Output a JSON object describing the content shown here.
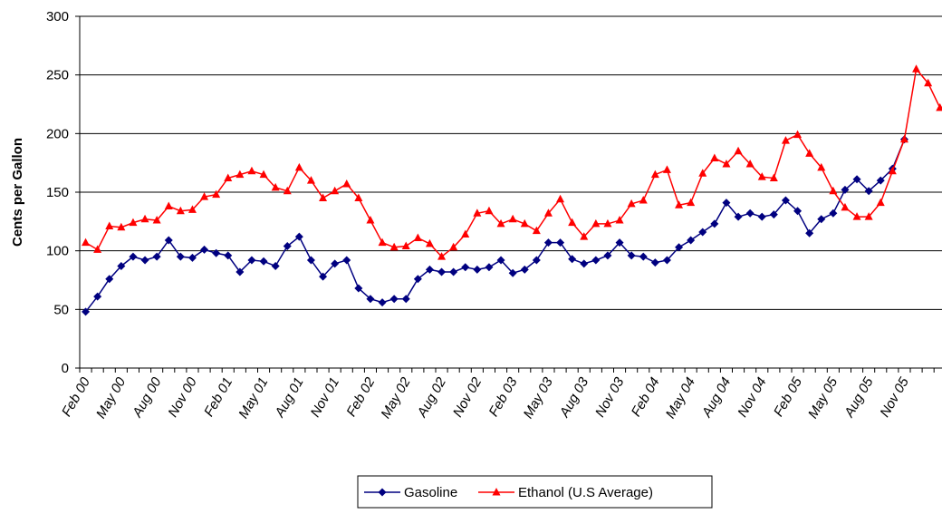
{
  "chart_data": {
    "type": "line",
    "y_label": "Cents per Gallon",
    "categories": [
      "Feb 00",
      null,
      null,
      "May 00",
      null,
      null,
      "Aug 00",
      null,
      null,
      "Nov 00",
      null,
      null,
      "Feb 01",
      null,
      null,
      "May 01",
      null,
      null,
      "Aug 01",
      null,
      null,
      "Nov 01",
      null,
      null,
      "Feb 02",
      null,
      null,
      "May 02",
      null,
      null,
      "Aug 02",
      null,
      null,
      "Nov 02",
      null,
      null,
      "Feb 03",
      null,
      null,
      "May 03",
      null,
      null,
      "Aug 03",
      null,
      null,
      "Nov 03",
      null,
      null,
      "Feb 04",
      null,
      null,
      "May 04",
      null,
      null,
      "Aug 04",
      null,
      null,
      "Nov 04",
      null,
      null,
      "Feb 05",
      null,
      null,
      "May 05",
      null,
      null,
      "Aug 05",
      null,
      null,
      "Nov 05",
      null,
      null,
      null
    ],
    "series": [
      {
        "name": "Gasoline",
        "color": "#000080",
        "marker": "diamond",
        "values": [
          48,
          61,
          76,
          87,
          95,
          92,
          95,
          109,
          95,
          94,
          101,
          98,
          96,
          82,
          92,
          91,
          87,
          104,
          112,
          92,
          78,
          89,
          92,
          68,
          59,
          56,
          59,
          59,
          76,
          84,
          82,
          82,
          86,
          84,
          86,
          92,
          81,
          84,
          92,
          107,
          107,
          93,
          89,
          92,
          96,
          107,
          96,
          95,
          90,
          92,
          103,
          109,
          116,
          123,
          141,
          129,
          132,
          129,
          131,
          143,
          134,
          115,
          127,
          132,
          152,
          161,
          151,
          160,
          170,
          195,
          null,
          null,
          null
        ]
      },
      {
        "name": "Ethanol (U.S Average)",
        "color": "#ff0000",
        "marker": "triangle",
        "values": [
          107,
          101,
          121,
          120,
          124,
          127,
          126,
          138,
          134,
          135,
          146,
          148,
          162,
          165,
          168,
          165,
          154,
          151,
          171,
          160,
          145,
          151,
          157,
          145,
          126,
          107,
          103,
          104,
          111,
          106,
          95,
          103,
          114,
          132,
          134,
          123,
          127,
          123,
          117,
          132,
          144,
          124,
          112,
          123,
          123,
          126,
          140,
          143,
          165,
          169,
          139,
          141,
          166,
          179,
          174,
          185,
          174,
          163,
          162,
          194,
          199,
          183,
          171,
          151,
          137,
          129,
          129,
          141,
          168,
          195,
          255,
          243,
          222
        ]
      }
    ],
    "ylim": [
      0,
      300
    ],
    "yticks": [
      0,
      50,
      100,
      150,
      200,
      250,
      300
    ],
    "grid": true
  }
}
